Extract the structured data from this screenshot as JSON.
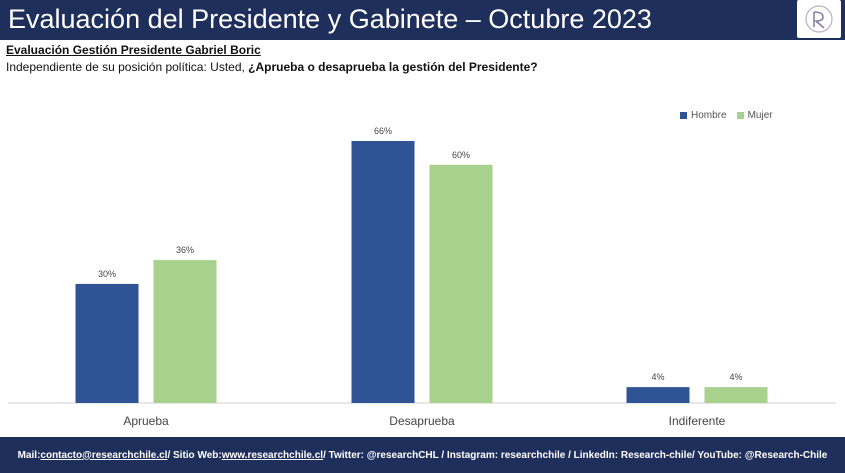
{
  "header": {
    "title": "Evaluación del Presidente y Gabinete – Octubre 2023"
  },
  "subtitle": "Evaluación Gestión Presidente Gabriel Boric",
  "question": {
    "prefix": "Independiente de su posición política: Usted, ",
    "bold": "¿Aprueba o desaprueba la gestión del Presidente?"
  },
  "colors": {
    "header_bg": "#1f2f5c",
    "hombre": "#2f5496",
    "mujer": "#a9d18e"
  },
  "chart_data": {
    "type": "bar",
    "categories": [
      "Aprueba",
      "Desaprueba",
      "Indiferente"
    ],
    "series": [
      {
        "name": "Hombre",
        "values": [
          30,
          66,
          4
        ],
        "labels": [
          "30%",
          "66%",
          "4%"
        ]
      },
      {
        "name": "Mujer",
        "values": [
          36,
          60,
          4
        ],
        "labels": [
          "36%",
          "60%",
          "4%"
        ]
      }
    ],
    "ylim": [
      0,
      70
    ],
    "grid": false,
    "legend_position": "top-right"
  },
  "footer": {
    "mail_label": "Mail: ",
    "mail": "contacto@researchchile.cl",
    "web_label": " / Sitio Web: ",
    "web": "www.researchchile.cl",
    "rest": " / Twitter: @researchCHL / Instagram: researchchile / LinkedIn: Research-chile/ YouTube: @Research-Chile"
  }
}
